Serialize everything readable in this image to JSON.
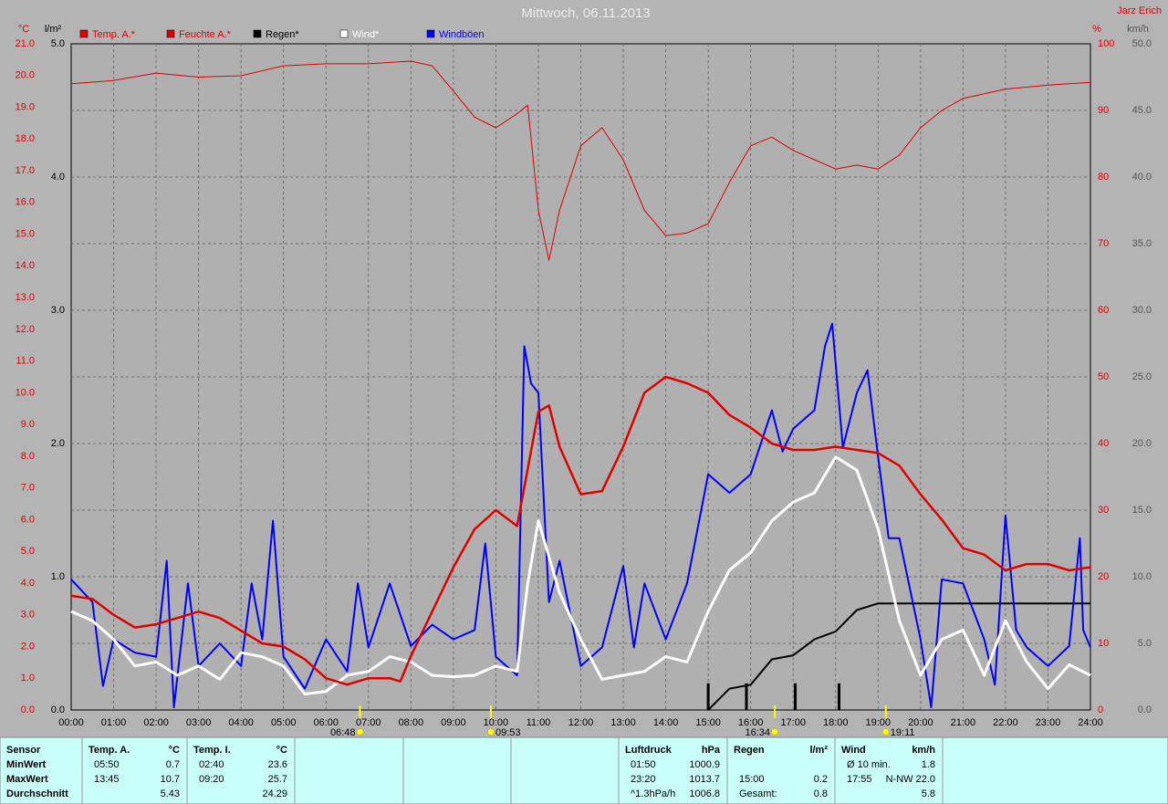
{
  "chart_data": {
    "type": "line",
    "title": "Mittwoch, 06.11.2013",
    "credit": "Jarz Erich",
    "grid": true,
    "xlim": [
      0,
      24
    ],
    "xticks": [
      {
        "value": 0,
        "label": "00:00"
      },
      {
        "value": 1,
        "label": "01:00"
      },
      {
        "value": 2,
        "label": "02:00"
      },
      {
        "value": 3,
        "label": "03:00"
      },
      {
        "value": 4,
        "label": "04:00"
      },
      {
        "value": 5,
        "label": "05:00"
      },
      {
        "value": 6,
        "label": "06:00"
      },
      {
        "value": 7,
        "label": "07:00"
      },
      {
        "value": 8,
        "label": "08:00"
      },
      {
        "value": 9,
        "label": "09:00"
      },
      {
        "value": 10,
        "label": "10:00"
      },
      {
        "value": 11,
        "label": "11:00"
      },
      {
        "value": 12,
        "label": "12:00"
      },
      {
        "value": 13,
        "label": "13:00"
      },
      {
        "value": 14,
        "label": "14:00"
      },
      {
        "value": 15,
        "label": "15:00"
      },
      {
        "value": 16,
        "label": "16:00"
      },
      {
        "value": 17,
        "label": "17:00"
      },
      {
        "value": 18,
        "label": "18:00"
      },
      {
        "value": 19,
        "label": "19:00"
      },
      {
        "value": 20,
        "label": "20:00"
      },
      {
        "value": 21,
        "label": "21:00"
      },
      {
        "value": 22,
        "label": "22:00"
      },
      {
        "value": 23,
        "label": "23:00"
      },
      {
        "value": 24,
        "label": "24:00"
      }
    ],
    "ylabel": "°C",
    "ylim": [
      0,
      21
    ],
    "yticks": [
      {
        "value": 0,
        "label": "0.0"
      },
      {
        "value": 1,
        "label": "1.0"
      },
      {
        "value": 2,
        "label": "2.0"
      },
      {
        "value": 3,
        "label": "3.0"
      },
      {
        "value": 4,
        "label": "4.0"
      },
      {
        "value": 5,
        "label": "5.0"
      },
      {
        "value": 6,
        "label": "6.0"
      },
      {
        "value": 7,
        "label": "7.0"
      },
      {
        "value": 8,
        "label": "8.0"
      },
      {
        "value": 9,
        "label": "9.0"
      },
      {
        "value": 10,
        "label": "10.0"
      },
      {
        "value": 11,
        "label": "11.0"
      },
      {
        "value": 12,
        "label": "12.0"
      },
      {
        "value": 13,
        "label": "13.0"
      },
      {
        "value": 14,
        "label": "14.0"
      },
      {
        "value": 15,
        "label": "15.0"
      },
      {
        "value": 16,
        "label": "16.0"
      },
      {
        "value": 17,
        "label": "17.0"
      },
      {
        "value": 18,
        "label": "18.0"
      },
      {
        "value": 19,
        "label": "19.0"
      },
      {
        "value": 20,
        "label": "20.0"
      },
      {
        "value": 21,
        "label": "21.0"
      }
    ],
    "y3label": "l/m²",
    "y3lim": [
      0,
      5
    ],
    "y3ticks": [
      {
        "value": 0,
        "label": "0.0"
      },
      {
        "value": 1,
        "label": "1.0"
      },
      {
        "value": 2,
        "label": "2.0"
      },
      {
        "value": 3,
        "label": "3.0"
      },
      {
        "value": 4,
        "label": "4.0"
      },
      {
        "value": 5,
        "label": "5.0"
      }
    ],
    "y2label": "%",
    "y2lim": [
      0,
      100
    ],
    "y2ticks": [
      0,
      10,
      20,
      30,
      40,
      50,
      60,
      70,
      80,
      90,
      100
    ],
    "y4label": "km/h",
    "y4lim": [
      0,
      50
    ],
    "y4ticks": [
      {
        "value": 0,
        "label": "0.0"
      },
      {
        "value": 5,
        "label": "5.0"
      },
      {
        "value": 10,
        "label": "10.0"
      },
      {
        "value": 15,
        "label": "15.0"
      },
      {
        "value": 20,
        "label": "20.0"
      },
      {
        "value": 25,
        "label": "25.0"
      },
      {
        "value": 30,
        "label": "30.0"
      },
      {
        "value": 35,
        "label": "35.0"
      },
      {
        "value": 40,
        "label": "40.0"
      },
      {
        "value": 45,
        "label": "45.0"
      },
      {
        "value": 50,
        "label": "50.0"
      }
    ],
    "series": [
      {
        "name": "Temp. A.*",
        "color": "#e00000",
        "axis": "y",
        "x": [
          0,
          0.5,
          1,
          1.5,
          2,
          2.5,
          3,
          3.5,
          4,
          4.5,
          5,
          5.5,
          6,
          6.5,
          7,
          7.5,
          7.75,
          8,
          8.5,
          9,
          9.5,
          10,
          10.5,
          11,
          11.25,
          11.5,
          12,
          12.5,
          13,
          13.5,
          14,
          14.5,
          15,
          15.5,
          16,
          16.5,
          17,
          17.5,
          18,
          18.5,
          19,
          19.5,
          20,
          20.5,
          21,
          21.5,
          22,
          22.5,
          23,
          23.5,
          24
        ],
        "values": [
          3.6,
          3.5,
          3.0,
          2.6,
          2.7,
          2.9,
          3.1,
          2.9,
          2.5,
          2.1,
          2.0,
          1.6,
          1.0,
          0.8,
          1.0,
          1.0,
          0.9,
          1.7,
          3.1,
          4.5,
          5.7,
          6.3,
          5.8,
          9.4,
          9.6,
          8.3,
          6.8,
          6.9,
          8.3,
          10.0,
          10.5,
          10.3,
          10.0,
          9.3,
          8.9,
          8.4,
          8.2,
          8.2,
          8.3,
          8.2,
          8.1,
          7.7,
          6.8,
          6.0,
          5.1,
          4.9,
          4.4,
          4.6,
          4.6,
          4.4,
          4.5
        ]
      },
      {
        "name": "Feuchte A.*",
        "color": "#e00000",
        "axis": "y2",
        "x": [
          0,
          1,
          2,
          3,
          4,
          5,
          6,
          7,
          8,
          8.5,
          9,
          9.5,
          10,
          10.5,
          10.75,
          11,
          11.25,
          11.5,
          12,
          12.5,
          13,
          13.5,
          14,
          14.5,
          15,
          15.5,
          16,
          16.5,
          17,
          17.5,
          18,
          18.5,
          19,
          19.5,
          20,
          20.5,
          21,
          22,
          23,
          24
        ],
        "values": [
          94,
          94.5,
          95.6,
          95,
          95.2,
          96.7,
          97,
          97,
          97.4,
          96.7,
          92.9,
          89,
          87.4,
          89.5,
          90.8,
          75,
          67.5,
          75,
          84.7,
          87.4,
          82.6,
          75,
          71.2,
          71.6,
          73,
          79.2,
          84.7,
          86,
          84,
          82.6,
          81.2,
          81.8,
          81.2,
          83.3,
          87.4,
          90,
          91.8,
          93.2,
          93.8,
          94.2
        ]
      },
      {
        "name": "Regen*",
        "color": "#000000",
        "axis": "y3",
        "x": [
          15,
          15.5,
          16,
          16.5,
          17,
          17.5,
          18,
          18.5,
          19,
          24
        ],
        "values": [
          0,
          0.16,
          0.19,
          0.38,
          0.41,
          0.53,
          0.59,
          0.75,
          0.8,
          0.8
        ],
        "bars": {
          "x": [
            15,
            15.9,
            17.05,
            18.08
          ],
          "values": [
            0.2,
            0.2,
            0.2,
            0.2
          ]
        }
      },
      {
        "name": "Wind*",
        "color": "#ffffff",
        "axis": "y4",
        "x": [
          0,
          0.5,
          1,
          1.5,
          2,
          2.5,
          3,
          3.5,
          4,
          4.5,
          5,
          5.5,
          6,
          6.5,
          7,
          7.5,
          8,
          8.5,
          9,
          9.5,
          10,
          10.5,
          10.75,
          11,
          11.5,
          12,
          12.5,
          13,
          13.5,
          14,
          14.5,
          15,
          15.5,
          16,
          16.5,
          17,
          17.5,
          18,
          18.5,
          19,
          19.5,
          20,
          20.5,
          21,
          21.5,
          22,
          22.5,
          23,
          23.5,
          24
        ],
        "values": [
          7.4,
          6.7,
          5.3,
          3.3,
          3.6,
          2.6,
          3.3,
          2.3,
          4.3,
          4.0,
          3.3,
          1.2,
          1.4,
          2.6,
          2.9,
          4.0,
          3.6,
          2.6,
          2.5,
          2.6,
          3.3,
          2.9,
          9.5,
          14.2,
          8.8,
          5.3,
          2.3,
          2.6,
          2.9,
          4.0,
          3.6,
          7.4,
          10.5,
          11.8,
          14.2,
          15.6,
          16.3,
          19.0,
          18.0,
          13.6,
          6.7,
          2.6,
          5.3,
          6.0,
          2.6,
          6.7,
          3.6,
          1.6,
          3.4,
          2.6
        ]
      },
      {
        "name": "Windböen",
        "color": "#0000ff",
        "axis": "y4",
        "x": [
          0,
          0.5,
          0.75,
          1,
          1.5,
          2,
          2.25,
          2.42,
          2.75,
          3,
          3.5,
          4,
          4.25,
          4.5,
          4.75,
          5,
          5.5,
          6,
          6.5,
          6.75,
          7,
          7.5,
          8,
          8.5,
          9,
          9.5,
          9.75,
          10,
          10.5,
          10.67,
          10.83,
          11,
          11.25,
          11.5,
          12,
          12.5,
          13,
          13.25,
          13.5,
          14,
          14.5,
          15,
          15.5,
          16,
          16.5,
          16.75,
          17,
          17.5,
          17.75,
          17.92,
          18.17,
          18.5,
          18.75,
          19,
          19.25,
          19.5,
          20,
          20.25,
          20.5,
          21,
          21.5,
          21.75,
          22,
          22.25,
          22.5,
          23,
          23.5,
          23.75,
          23.83,
          24
        ],
        "values": [
          9.8,
          8.1,
          1.8,
          5.3,
          4.3,
          4.0,
          11.2,
          0.2,
          9.5,
          3.3,
          5.0,
          3.3,
          9.5,
          5.3,
          14.2,
          4.0,
          1.6,
          5.3,
          2.9,
          9.5,
          4.7,
          9.5,
          4.8,
          6.4,
          5.3,
          6.0,
          12.5,
          4.0,
          2.6,
          27.3,
          24.5,
          23.8,
          8.1,
          11.2,
          3.3,
          4.7,
          10.8,
          4.7,
          9.5,
          5.3,
          9.5,
          17.7,
          16.3,
          17.7,
          22.5,
          19.4,
          21.1,
          22.5,
          27.3,
          29.0,
          19.7,
          23.8,
          25.5,
          19.0,
          12.9,
          12.9,
          5.3,
          0.2,
          9.8,
          9.5,
          5.3,
          1.9,
          14.6,
          6.0,
          4.7,
          3.3,
          4.8,
          12.9,
          6.0,
          4.7
        ]
      }
    ],
    "annotations": [
      {
        "x": 6.8,
        "label": "06:48"
      },
      {
        "x": 9.883,
        "label": "09:53"
      },
      {
        "x": 16.567,
        "label": "16:34"
      },
      {
        "x": 19.183,
        "label": "19:11"
      }
    ]
  },
  "table": {
    "panels": [
      {
        "title": "Sensor",
        "rows": [
          [
            "MinWert"
          ],
          [
            "MaxWert"
          ],
          [
            "Durchschnitt"
          ]
        ]
      },
      {
        "title": "Temp. A.",
        "unit": "°C",
        "rows": [
          [
            "05:50",
            "0.7"
          ],
          [
            "13:45",
            "10.7"
          ],
          [
            "5.43"
          ]
        ]
      },
      {
        "title": "Temp. I.",
        "unit": "°C",
        "rows": [
          [
            "02:40",
            "23.6"
          ],
          [
            "09:20",
            "25.7"
          ],
          [
            "24.29"
          ]
        ]
      },
      {
        "title": "Luftdruck",
        "unit": "hPa",
        "rows": [
          [
            "01:50",
            "1000.9"
          ],
          [
            "23:20",
            "1013.7"
          ],
          [
            "^1.3hPa/h",
            "1006.8"
          ]
        ]
      },
      {
        "title": "Regen",
        "unit": "l/m²",
        "rows": [
          null,
          [
            "15:00",
            "0.2"
          ],
          [
            "Gesamt:",
            "0.8"
          ]
        ]
      },
      {
        "title": "Wind",
        "unit": "km/h",
        "rows": [
          [
            "Ø 10 min.",
            "1.8"
          ],
          [
            "17:55",
            "N-NW 22.0"
          ],
          [
            "5.8"
          ]
        ]
      }
    ]
  }
}
